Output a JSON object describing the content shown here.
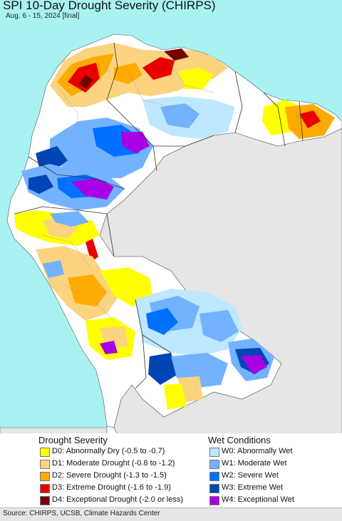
{
  "title": "SPI 10-Day Drought Severity (CHIRPS)",
  "subtitle": "Aug. 6 - 15, 2024 [final]",
  "colors": {
    "ocean": "#a9f2f2",
    "land": "#ffffff",
    "outside_land": "#e6e6e6"
  },
  "legend": {
    "drought": {
      "heading": "Drought Severity",
      "items": [
        {
          "label": "D0: Abnormally Dry (-0.5 to -0.7)",
          "color": "#ffff00"
        },
        {
          "label": "D1: Moderate Drought (-0.8 to -1.2)",
          "color": "#fcd37f"
        },
        {
          "label": "D2: Severe Drought (-1.3 to -1.5)",
          "color": "#ffaa00"
        },
        {
          "label": "D3: Extreme Drought (-1.6 to -1.9)",
          "color": "#e60000"
        },
        {
          "label": "D4: Exceptional Drought (-2.0 or less)",
          "color": "#730000"
        }
      ]
    },
    "wet": {
      "heading": "Wet Conditions",
      "items": [
        {
          "label": "W0: Abnormally Wet",
          "color": "#bee8ff"
        },
        {
          "label": "W1: Moderate Wet",
          "color": "#73b2ff"
        },
        {
          "label": "W2: Severe Wet",
          "color": "#0070ff"
        },
        {
          "label": "W3: Extreme Wet",
          "color": "#0045b5"
        },
        {
          "label": "W4: Exceptional Wet",
          "color": "#a800e6"
        }
      ]
    }
  },
  "source": "Source: CHIRPS, UCSB, Climate Hazards Center"
}
